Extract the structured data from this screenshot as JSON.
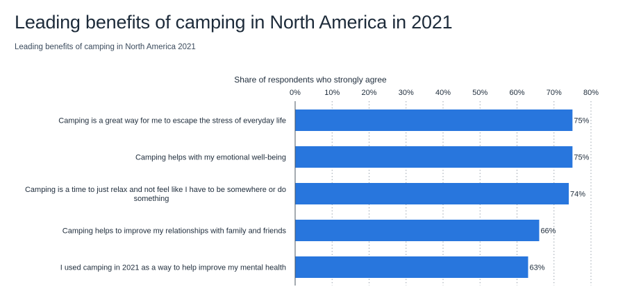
{
  "header": {
    "title": "Leading benefits of camping in North America in 2021",
    "subtitle": "Leading benefits of camping in North America 2021"
  },
  "colors": {
    "bar": "#2876dd",
    "text": "#1d2b3a",
    "grid": "#9aa3ad"
  },
  "chart_data": {
    "type": "bar",
    "orientation": "horizontal",
    "title": "Leading benefits of camping in North America in 2021",
    "subtitle": "Leading benefits of camping in North America 2021",
    "xlabel": "Share of respondents who strongly agree",
    "ylabel": "",
    "xlim": [
      0,
      80
    ],
    "ticks": [
      0,
      10,
      20,
      30,
      40,
      50,
      60,
      70,
      80
    ],
    "tick_labels": [
      "0%",
      "10%",
      "20%",
      "30%",
      "40%",
      "50%",
      "60%",
      "70%",
      "80%"
    ],
    "axis_position": "top",
    "grid": true,
    "categories": [
      [
        "Camping is a great way for me to escape the stress of everyday life"
      ],
      [
        "Camping helps with my emotional well-being"
      ],
      [
        "Camping is a time to just relax and not feel like I have to be somewhere or do",
        "something"
      ],
      [
        "Camping helps to improve my relationships with family and friends"
      ],
      [
        "I used camping in 2021 as a way to help improve my mental health"
      ]
    ],
    "values": [
      75,
      75,
      74,
      66,
      63
    ],
    "value_labels": [
      "75%",
      "75%",
      "74%",
      "66%",
      "63%"
    ]
  }
}
